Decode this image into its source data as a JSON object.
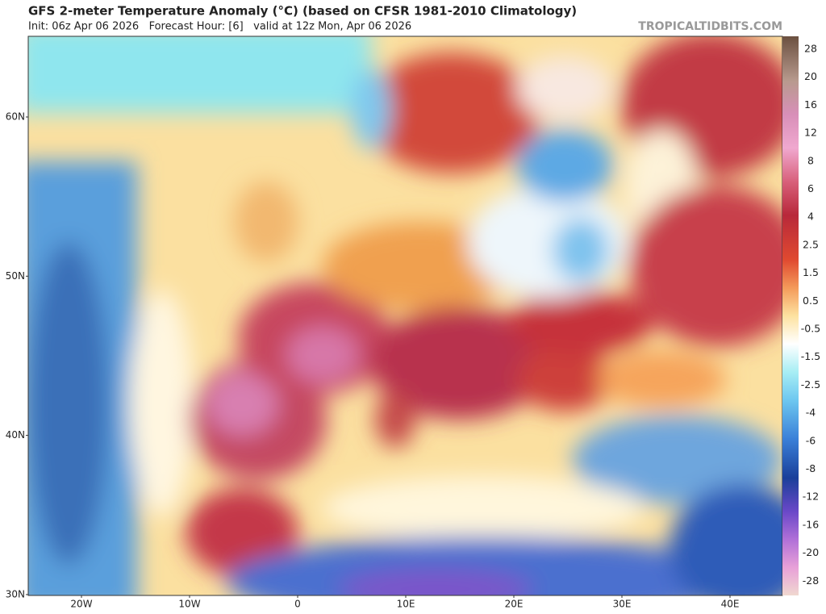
{
  "header": {
    "title": "GFS 2-meter Temperature Anomaly (°C) (based on CFSR 1981-2010 Climatology)",
    "subtitle": "Init: 06z Apr 06 2026   Forecast Hour: [6]   valid at 12z Mon, Apr 06 2026",
    "credit": "TROPICALTIDBITS.COM"
  },
  "map": {
    "lat_labels": [
      "60N",
      "50N",
      "40N",
      "30N"
    ],
    "lon_labels": [
      "20W",
      "10W",
      "0",
      "10E",
      "20E",
      "30E",
      "40E"
    ]
  },
  "colorbar": {
    "levels": [
      28,
      20,
      16,
      12,
      8,
      6,
      4,
      2.5,
      1.5,
      0.5,
      -0.5,
      -1.5,
      -2.5,
      -4,
      -6,
      -8,
      -12,
      -16,
      -20,
      -28
    ]
  }
}
